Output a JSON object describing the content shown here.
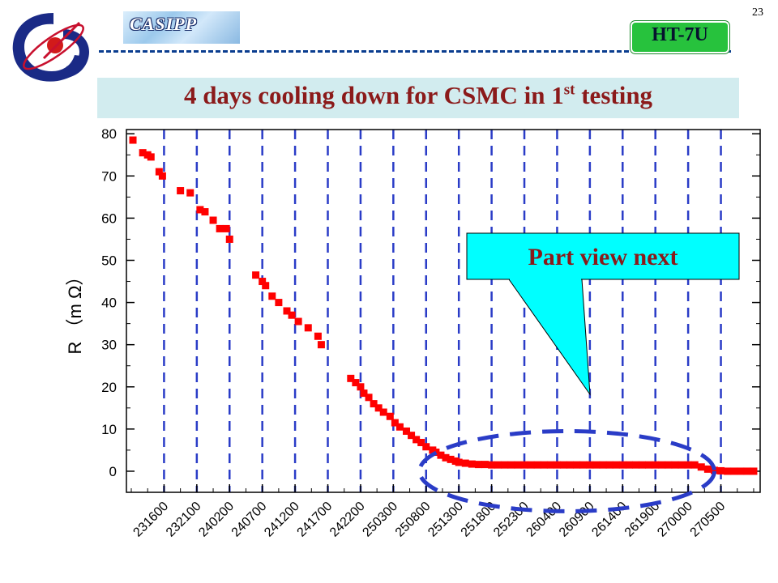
{
  "header": {
    "page_number": "23",
    "logo_icon": "institute-logo-icon",
    "casipp_label": "CASIPP",
    "ht7u_label": "HT-7U",
    "title_main": "4 days cooling down for CSMC in 1",
    "title_superscript": "st",
    "title_tail": " testing",
    "colors": {
      "title_text": "#8b1a1a",
      "title_bar": "#d2ecef",
      "ht7u_badge": "#27c23d",
      "rule": "#0a3d8f"
    }
  },
  "callout": {
    "label": "Part view next",
    "fill": "#00ffff",
    "text_color": "#8b1a1a"
  },
  "chart_data": {
    "type": "scatter",
    "title": "",
    "ylabel": "R （m Ω）",
    "xlabel": "",
    "ylim": [
      -5,
      81
    ],
    "y_ticks": [
      0,
      10,
      20,
      30,
      40,
      50,
      60,
      70,
      80
    ],
    "y_tick_labels": [
      "0",
      "10",
      "20",
      "30",
      "40",
      "50",
      "60",
      "70",
      "80"
    ],
    "x_range": [
      0,
      19.1
    ],
    "x_tick_labels": [
      "231600",
      "232100",
      "240200",
      "240700",
      "241200",
      "241700",
      "242200",
      "250300",
      "250800",
      "251300",
      "251800",
      "252300",
      "260400",
      "260900",
      "261400",
      "261900",
      "270000",
      "270500"
    ],
    "grid": "vertical dashed lines at labelled ticks",
    "marker_color": "#ff0000",
    "emphasis_ellipse": {
      "x_center": 13.3,
      "y_center": 0,
      "x_radius": 4.5,
      "y_radius": 9.5,
      "color": "#2a3cc7"
    },
    "series": [
      {
        "x": [
          0.05,
          0.35,
          0.5,
          0.6,
          0.85,
          0.95,
          1.5,
          1.8,
          2.1,
          2.25,
          2.5,
          2.7,
          2.9,
          3.0,
          3.8,
          4.0,
          4.1,
          4.3,
          4.5,
          4.75,
          4.9,
          5.1,
          5.4,
          5.7,
          5.8,
          6.7,
          6.85,
          7.0,
          7.1,
          7.25,
          7.4,
          7.55,
          7.7,
          7.9,
          8.05,
          8.2,
          8.4,
          8.55,
          8.7,
          8.85,
          9.0,
          9.2,
          9.3,
          9.45,
          9.6,
          9.75,
          9.9,
          10.0,
          10.2,
          10.4,
          10.6,
          10.8,
          11.0,
          11.2,
          11.4,
          11.6,
          11.8,
          12.0,
          12.2,
          12.4,
          12.6,
          12.8,
          13.0,
          13.2,
          13.4,
          13.6,
          13.8,
          14.0,
          14.2,
          14.4,
          14.6,
          14.8,
          15.0,
          15.2,
          15.4,
          15.6,
          15.8,
          16.0,
          16.2,
          16.4,
          16.6,
          16.8,
          17.0,
          17.2,
          17.4,
          17.6,
          17.8,
          18.0,
          18.2,
          18.4,
          18.6,
          18.8,
          19.0
        ],
        "y": [
          78.5,
          75.5,
          75,
          74.5,
          71,
          70,
          66.5,
          66,
          62,
          61.5,
          59.5,
          57.5,
          57.5,
          55,
          46.5,
          45,
          44,
          41.5,
          40,
          38,
          37,
          35.5,
          34,
          32,
          30,
          22,
          21,
          20,
          18.5,
          17.5,
          16,
          15,
          14,
          13,
          11.5,
          10.5,
          9.5,
          8.5,
          7.5,
          6.8,
          5.8,
          5,
          4.5,
          3.8,
          3.2,
          2.8,
          2.4,
          2.1,
          1.9,
          1.7,
          1.6,
          1.6,
          1.5,
          1.5,
          1.5,
          1.5,
          1.5,
          1.5,
          1.5,
          1.5,
          1.5,
          1.5,
          1.5,
          1.5,
          1.5,
          1.5,
          1.5,
          1.5,
          1.5,
          1.5,
          1.5,
          1.5,
          1.5,
          1.5,
          1.5,
          1.5,
          1.5,
          1.5,
          1.5,
          1.5,
          1.5,
          1.5,
          1.5,
          1.5,
          1.0,
          0.5,
          0.2,
          0.1,
          0.0,
          0.0,
          0.0,
          0.0,
          0.0
        ]
      }
    ]
  }
}
